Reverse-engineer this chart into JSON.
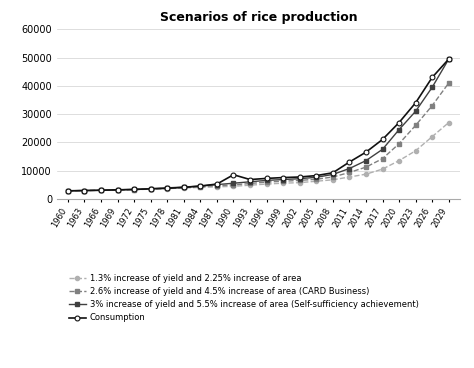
{
  "title": "Scenarios of rice production",
  "years": [
    1960,
    1963,
    1966,
    1969,
    1972,
    1975,
    1978,
    1981,
    1984,
    1987,
    1990,
    1993,
    1996,
    1999,
    2002,
    2005,
    2008,
    2011,
    2014,
    2017,
    2020,
    2023,
    2026,
    2029
  ],
  "consumption": [
    2800,
    2900,
    3000,
    3150,
    3300,
    3500,
    3700,
    4000,
    4500,
    5200,
    8500,
    6800,
    7200,
    7500,
    7700,
    8200,
    9200,
    13000,
    16500,
    21000,
    27000,
    34000,
    43000,
    49500
  ],
  "scenario1": [
    2800,
    2900,
    3000,
    3100,
    3200,
    3400,
    3600,
    3800,
    4000,
    4200,
    4400,
    4800,
    5200,
    5500,
    5700,
    6200,
    6700,
    7700,
    8700,
    10500,
    13500,
    17000,
    22000,
    27000
  ],
  "scenario2": [
    2800,
    2900,
    3000,
    3100,
    3250,
    3450,
    3700,
    4000,
    4300,
    4600,
    4900,
    5400,
    5900,
    6200,
    6500,
    6900,
    7700,
    9300,
    11200,
    14200,
    19500,
    26000,
    33000,
    41000
  ],
  "scenario3": [
    2800,
    2900,
    3000,
    3150,
    3300,
    3550,
    3850,
    4150,
    4500,
    5000,
    5500,
    6000,
    6500,
    6800,
    7100,
    7600,
    8600,
    10700,
    13500,
    17500,
    24500,
    31000,
    39500,
    49500
  ],
  "ylim": [
    0,
    60000
  ],
  "yticks": [
    0,
    10000,
    20000,
    30000,
    40000,
    50000,
    60000
  ],
  "legend1": "1.3% increase of yield and 2.25% increase of area",
  "legend2": "2.6% increase of yield and 4.5% increase of area (CARD Business)",
  "legend3": "3% increase of yield and 5.5% increase of area (Self-sufficiency achievement)",
  "legend4": "Consumption",
  "color1": "#b0b0b0",
  "color2": "#808080",
  "color3": "#404040",
  "color4": "#111111",
  "bg_color": "#ffffff"
}
